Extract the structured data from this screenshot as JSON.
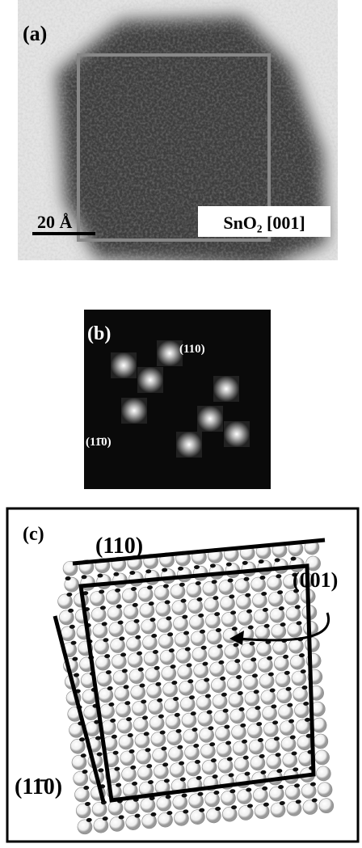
{
  "panel_a": {
    "label": "(a)",
    "scale_bar": "20 Å",
    "caption": "SnO₂ [001]"
  },
  "panel_b": {
    "label": "(b)",
    "spot_label_top": "(110)",
    "spot_label_left": "(11̄0)"
  },
  "panel_c": {
    "label": "(c)",
    "top_face": "(110)",
    "zone_axis": "(001)",
    "left_face": "(11̄0)"
  }
}
